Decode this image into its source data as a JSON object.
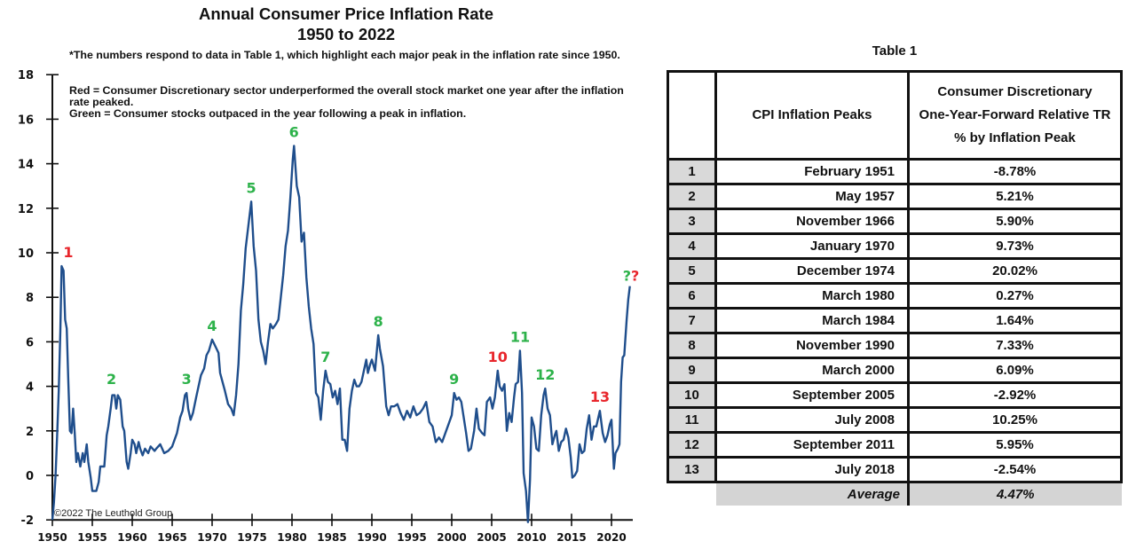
{
  "chart_data": {
    "type": "line",
    "title": "Annual Consumer Price Inflation Rate",
    "subtitle": "1950 to 2022",
    "notes": [
      "*The numbers respond to data in Table 1, which highlight each major peak in the inflation rate since 1950.",
      "Red = Consumer Discretionary sector underperformed the overall stock market one year after the inflation rate peaked.",
      "Green = Consumer stocks outpaced in the year following a peak in inflation."
    ],
    "xlabel": "",
    "ylabel": "",
    "xlim": [
      1950,
      2022.5
    ],
    "ylim": [
      -2,
      18
    ],
    "yticks": [
      -2,
      0,
      2,
      4,
      6,
      8,
      10,
      12,
      14,
      16,
      18
    ],
    "xticks": [
      1950,
      1955,
      1960,
      1965,
      1970,
      1975,
      1980,
      1985,
      1990,
      1995,
      2000,
      2005,
      2010,
      2015,
      2020
    ],
    "grid": false,
    "copyright": "©2022 The Leuthold Group",
    "line_color": "#1f4e8c",
    "series": [
      {
        "name": "CPI YoY %",
        "points": [
          [
            1950.0,
            -2.0
          ],
          [
            1950.2,
            -1.2
          ],
          [
            1950.4,
            0.0
          ],
          [
            1950.6,
            1.8
          ],
          [
            1950.8,
            3.8
          ],
          [
            1951.0,
            6.5
          ],
          [
            1951.15,
            9.4
          ],
          [
            1951.4,
            9.2
          ],
          [
            1951.6,
            7.0
          ],
          [
            1951.8,
            6.6
          ],
          [
            1952.0,
            4.2
          ],
          [
            1952.2,
            2.0
          ],
          [
            1952.4,
            1.9
          ],
          [
            1952.6,
            3.0
          ],
          [
            1952.8,
            1.9
          ],
          [
            1953.0,
            0.6
          ],
          [
            1953.2,
            1.0
          ],
          [
            1953.5,
            0.4
          ],
          [
            1953.8,
            1.0
          ],
          [
            1954.0,
            0.6
          ],
          [
            1954.3,
            1.4
          ],
          [
            1954.5,
            0.6
          ],
          [
            1954.8,
            -0.1
          ],
          [
            1955.0,
            -0.7
          ],
          [
            1955.5,
            -0.7
          ],
          [
            1955.8,
            -0.3
          ],
          [
            1956.0,
            0.4
          ],
          [
            1956.5,
            0.4
          ],
          [
            1956.8,
            1.8
          ],
          [
            1957.0,
            2.2
          ],
          [
            1957.3,
            3.0
          ],
          [
            1957.5,
            3.6
          ],
          [
            1957.8,
            3.6
          ],
          [
            1958.0,
            3.0
          ],
          [
            1958.2,
            3.6
          ],
          [
            1958.5,
            3.4
          ],
          [
            1958.8,
            2.2
          ],
          [
            1959.0,
            2.0
          ],
          [
            1959.3,
            0.6
          ],
          [
            1959.5,
            0.3
          ],
          [
            1959.8,
            1.0
          ],
          [
            1960.0,
            1.6
          ],
          [
            1960.3,
            1.4
          ],
          [
            1960.5,
            1.0
          ],
          [
            1960.8,
            1.5
          ],
          [
            1961.0,
            1.2
          ],
          [
            1961.3,
            0.9
          ],
          [
            1961.6,
            1.2
          ],
          [
            1962.0,
            1.0
          ],
          [
            1962.3,
            1.3
          ],
          [
            1962.8,
            1.1
          ],
          [
            1963.0,
            1.2
          ],
          [
            1963.5,
            1.4
          ],
          [
            1964.0,
            1.0
          ],
          [
            1964.5,
            1.1
          ],
          [
            1965.0,
            1.3
          ],
          [
            1965.3,
            1.6
          ],
          [
            1965.6,
            1.9
          ],
          [
            1966.0,
            2.6
          ],
          [
            1966.3,
            2.9
          ],
          [
            1966.6,
            3.6
          ],
          [
            1966.8,
            3.7
          ],
          [
            1967.0,
            3.0
          ],
          [
            1967.3,
            2.5
          ],
          [
            1967.6,
            2.8
          ],
          [
            1968.0,
            3.5
          ],
          [
            1968.3,
            4.0
          ],
          [
            1968.6,
            4.5
          ],
          [
            1969.0,
            4.8
          ],
          [
            1969.3,
            5.4
          ],
          [
            1969.6,
            5.6
          ],
          [
            1970.0,
            6.1
          ],
          [
            1970.4,
            5.8
          ],
          [
            1970.8,
            5.5
          ],
          [
            1971.0,
            4.6
          ],
          [
            1971.3,
            4.2
          ],
          [
            1971.6,
            3.8
          ],
          [
            1972.0,
            3.2
          ],
          [
            1972.4,
            3.0
          ],
          [
            1972.7,
            2.7
          ],
          [
            1973.0,
            3.6
          ],
          [
            1973.3,
            5.0
          ],
          [
            1973.6,
            7.4
          ],
          [
            1973.9,
            8.6
          ],
          [
            1974.2,
            10.2
          ],
          [
            1974.5,
            11.1
          ],
          [
            1974.9,
            12.3
          ],
          [
            1975.2,
            10.3
          ],
          [
            1975.5,
            9.2
          ],
          [
            1975.8,
            7.0
          ],
          [
            1976.1,
            6.0
          ],
          [
            1976.4,
            5.6
          ],
          [
            1976.7,
            5.0
          ],
          [
            1977.0,
            6.0
          ],
          [
            1977.3,
            6.8
          ],
          [
            1977.6,
            6.6
          ],
          [
            1978.0,
            6.8
          ],
          [
            1978.3,
            7.0
          ],
          [
            1978.6,
            8.0
          ],
          [
            1978.9,
            9.0
          ],
          [
            1979.2,
            10.3
          ],
          [
            1979.5,
            11.0
          ],
          [
            1979.8,
            12.5
          ],
          [
            1980.1,
            14.2
          ],
          [
            1980.25,
            14.8
          ],
          [
            1980.6,
            13.0
          ],
          [
            1980.9,
            12.5
          ],
          [
            1981.2,
            10.5
          ],
          [
            1981.5,
            10.9
          ],
          [
            1981.8,
            8.9
          ],
          [
            1982.1,
            7.6
          ],
          [
            1982.4,
            6.6
          ],
          [
            1982.7,
            5.9
          ],
          [
            1983.0,
            3.7
          ],
          [
            1983.3,
            3.5
          ],
          [
            1983.6,
            2.5
          ],
          [
            1983.9,
            3.8
          ],
          [
            1984.2,
            4.7
          ],
          [
            1984.5,
            4.2
          ],
          [
            1984.8,
            4.1
          ],
          [
            1985.1,
            3.5
          ],
          [
            1985.4,
            3.8
          ],
          [
            1985.7,
            3.2
          ],
          [
            1986.0,
            3.9
          ],
          [
            1986.3,
            1.6
          ],
          [
            1986.6,
            1.6
          ],
          [
            1986.9,
            1.1
          ],
          [
            1987.2,
            3.0
          ],
          [
            1987.5,
            3.8
          ],
          [
            1987.8,
            4.3
          ],
          [
            1988.1,
            4.0
          ],
          [
            1988.4,
            4.0
          ],
          [
            1988.7,
            4.2
          ],
          [
            1989.0,
            4.7
          ],
          [
            1989.3,
            5.2
          ],
          [
            1989.5,
            4.6
          ],
          [
            1989.8,
            5.0
          ],
          [
            1990.0,
            5.2
          ],
          [
            1990.4,
            4.7
          ],
          [
            1990.8,
            6.3
          ],
          [
            1991.0,
            5.7
          ],
          [
            1991.4,
            4.9
          ],
          [
            1991.8,
            3.1
          ],
          [
            1992.1,
            2.7
          ],
          [
            1992.4,
            3.1
          ],
          [
            1992.8,
            3.1
          ],
          [
            1993.2,
            3.2
          ],
          [
            1993.6,
            2.8
          ],
          [
            1994.0,
            2.5
          ],
          [
            1994.4,
            2.9
          ],
          [
            1994.8,
            2.6
          ],
          [
            1995.2,
            3.1
          ],
          [
            1995.6,
            2.7
          ],
          [
            1996.0,
            2.8
          ],
          [
            1996.4,
            3.0
          ],
          [
            1996.8,
            3.3
          ],
          [
            1997.2,
            2.4
          ],
          [
            1997.6,
            2.2
          ],
          [
            1998.0,
            1.5
          ],
          [
            1998.4,
            1.7
          ],
          [
            1998.8,
            1.5
          ],
          [
            1999.2,
            1.9
          ],
          [
            1999.6,
            2.3
          ],
          [
            2000.0,
            2.7
          ],
          [
            2000.3,
            3.7
          ],
          [
            2000.6,
            3.4
          ],
          [
            2000.9,
            3.5
          ],
          [
            2001.2,
            3.3
          ],
          [
            2001.5,
            2.6
          ],
          [
            2001.8,
            1.9
          ],
          [
            2002.1,
            1.1
          ],
          [
            2002.4,
            1.2
          ],
          [
            2002.8,
            2.0
          ],
          [
            2003.1,
            3.0
          ],
          [
            2003.4,
            2.1
          ],
          [
            2003.8,
            1.9
          ],
          [
            2004.1,
            1.8
          ],
          [
            2004.4,
            3.3
          ],
          [
            2004.8,
            3.5
          ],
          [
            2005.1,
            3.0
          ],
          [
            2005.4,
            3.5
          ],
          [
            2005.75,
            4.7
          ],
          [
            2006.0,
            4.0
          ],
          [
            2006.3,
            3.8
          ],
          [
            2006.6,
            4.1
          ],
          [
            2006.9,
            2.0
          ],
          [
            2007.2,
            2.8
          ],
          [
            2007.5,
            2.4
          ],
          [
            2007.8,
            3.5
          ],
          [
            2008.0,
            4.1
          ],
          [
            2008.3,
            4.2
          ],
          [
            2008.55,
            5.6
          ],
          [
            2008.8,
            3.7
          ],
          [
            2009.0,
            0.1
          ],
          [
            2009.3,
            -0.7
          ],
          [
            2009.55,
            -2.1
          ],
          [
            2009.8,
            -0.2
          ],
          [
            2010.0,
            2.6
          ],
          [
            2010.3,
            2.2
          ],
          [
            2010.6,
            1.2
          ],
          [
            2010.9,
            1.1
          ],
          [
            2011.2,
            2.7
          ],
          [
            2011.5,
            3.6
          ],
          [
            2011.7,
            3.9
          ],
          [
            2012.0,
            3.0
          ],
          [
            2012.3,
            2.7
          ],
          [
            2012.6,
            1.4
          ],
          [
            2012.9,
            1.8
          ],
          [
            2013.1,
            2.0
          ],
          [
            2013.4,
            1.1
          ],
          [
            2013.7,
            1.5
          ],
          [
            2014.0,
            1.6
          ],
          [
            2014.3,
            2.1
          ],
          [
            2014.6,
            1.7
          ],
          [
            2014.9,
            0.8
          ],
          [
            2015.1,
            -0.1
          ],
          [
            2015.4,
            0.0
          ],
          [
            2015.7,
            0.2
          ],
          [
            2016.0,
            1.4
          ],
          [
            2016.3,
            1.0
          ],
          [
            2016.6,
            1.1
          ],
          [
            2016.9,
            2.1
          ],
          [
            2017.2,
            2.7
          ],
          [
            2017.5,
            1.6
          ],
          [
            2017.8,
            2.2
          ],
          [
            2018.1,
            2.2
          ],
          [
            2018.55,
            2.9
          ],
          [
            2018.9,
            1.9
          ],
          [
            2019.2,
            1.5
          ],
          [
            2019.5,
            1.8
          ],
          [
            2019.8,
            2.3
          ],
          [
            2020.0,
            2.5
          ],
          [
            2020.3,
            0.3
          ],
          [
            2020.5,
            1.0
          ],
          [
            2020.8,
            1.2
          ],
          [
            2021.0,
            1.4
          ],
          [
            2021.2,
            4.2
          ],
          [
            2021.4,
            5.3
          ],
          [
            2021.6,
            5.4
          ],
          [
            2021.9,
            7.0
          ],
          [
            2022.1,
            7.9
          ],
          [
            2022.3,
            8.5
          ]
        ]
      }
    ],
    "annotations": [
      {
        "label": "1",
        "x": 1951.15,
        "y": 9.4,
        "color": "red"
      },
      {
        "label": "2",
        "x": 1957.4,
        "y": 3.7,
        "color": "green"
      },
      {
        "label": "3",
        "x": 1966.8,
        "y": 3.7,
        "color": "green"
      },
      {
        "label": "4",
        "x": 1970.0,
        "y": 6.1,
        "color": "green"
      },
      {
        "label": "5",
        "x": 1974.9,
        "y": 12.3,
        "color": "green"
      },
      {
        "label": "6",
        "x": 1980.25,
        "y": 14.8,
        "color": "green"
      },
      {
        "label": "7",
        "x": 1984.2,
        "y": 4.7,
        "color": "green"
      },
      {
        "label": "8",
        "x": 1990.8,
        "y": 6.3,
        "color": "green"
      },
      {
        "label": "9",
        "x": 2000.3,
        "y": 3.7,
        "color": "green"
      },
      {
        "label": "10",
        "x": 2005.75,
        "y": 4.7,
        "color": "red"
      },
      {
        "label": "11",
        "x": 2008.55,
        "y": 5.6,
        "color": "green"
      },
      {
        "label": "12",
        "x": 2011.7,
        "y": 3.9,
        "color": "green"
      },
      {
        "label": "13",
        "x": 2018.55,
        "y": 2.9,
        "color": "red"
      },
      {
        "label": "??",
        "x": 2022.3,
        "y": 8.5,
        "color": "mixed"
      }
    ],
    "colors": {
      "red": "#e8262c",
      "green": "#2db24a",
      "line": "#1f4e8c"
    }
  },
  "table": {
    "title": "Table 1",
    "headers": [
      "",
      "CPI Inflation Peaks",
      "Consumer Discretionary One-Year-Forward Relative TR % by Inflation Peak"
    ],
    "header_lines": [
      "Consumer Discretionary",
      "One-Year-Forward Relative TR",
      "% by Inflation Peak"
    ],
    "rows": [
      {
        "n": "1",
        "peak": "February 1951",
        "value": "-8.78%"
      },
      {
        "n": "2",
        "peak": "May 1957",
        "value": "5.21%"
      },
      {
        "n": "3",
        "peak": "November 1966",
        "value": "5.90%"
      },
      {
        "n": "4",
        "peak": "January 1970",
        "value": "9.73%"
      },
      {
        "n": "5",
        "peak": "December 1974",
        "value": "20.02%"
      },
      {
        "n": "6",
        "peak": "March 1980",
        "value": "0.27%"
      },
      {
        "n": "7",
        "peak": "March 1984",
        "value": "1.64%"
      },
      {
        "n": "8",
        "peak": "November 1990",
        "value": "7.33%"
      },
      {
        "n": "9",
        "peak": "March 2000",
        "value": "6.09%"
      },
      {
        "n": "10",
        "peak": "September 2005",
        "value": "-2.92%"
      },
      {
        "n": "11",
        "peak": "July 2008",
        "value": "10.25%"
      },
      {
        "n": "12",
        "peak": "September 2011",
        "value": "5.95%"
      },
      {
        "n": "13",
        "peak": "July 2018",
        "value": "-2.54%"
      }
    ],
    "average_label": "Average",
    "average_value": "4.47%"
  }
}
